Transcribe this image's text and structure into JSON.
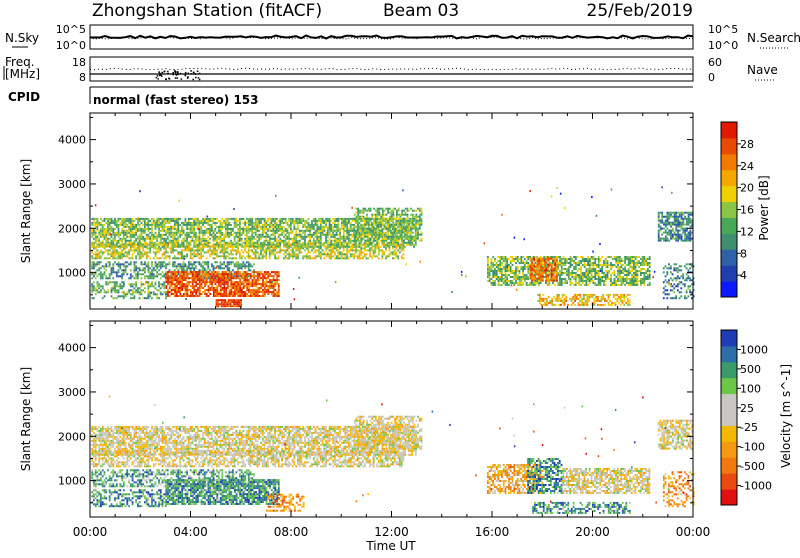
{
  "header": {
    "station": "Zhongshan Station (fitACF)",
    "beam": "Beam 03",
    "date": "25/Feb/2019"
  },
  "noise_panel": {
    "left_label": "N.Sky",
    "right_label": "N.Search",
    "left_ticks": [
      "10^5",
      "10^0"
    ],
    "right_ticks": [
      "10^5",
      "10^0"
    ]
  },
  "freq_panel": {
    "left_label_line1": "Freq.",
    "left_label_line2": "[MHz]",
    "right_label": "Nave",
    "left_ticks": [
      "18",
      "8"
    ],
    "right_ticks": [
      "60",
      "0"
    ]
  },
  "cpid": {
    "label": "CPID",
    "text": "normal (fast stereo) 153"
  },
  "x_axis": {
    "title": "Time UT",
    "range_hours": [
      0,
      24
    ],
    "ticks": [
      {
        "hour": 0,
        "label": "00:00"
      },
      {
        "hour": 4,
        "label": "04:00"
      },
      {
        "hour": 8,
        "label": "08:00"
      },
      {
        "hour": 12,
        "label": "12:00"
      },
      {
        "hour": 16,
        "label": "16:00"
      },
      {
        "hour": 20,
        "label": "20:00"
      },
      {
        "hour": 24,
        "label": "00:00"
      }
    ]
  },
  "chart_data": [
    {
      "type": "heatmap",
      "quantity": "power",
      "ylabel": "Slant Range [km]",
      "ylim": [
        180,
        4600
      ],
      "xlim": [
        0,
        24
      ],
      "yticks": [
        1000,
        2000,
        3000,
        4000
      ],
      "colorbar": {
        "label": "Power [dB]",
        "ticks": [
          "4",
          "8",
          "12",
          "16",
          "20",
          "24",
          "28"
        ],
        "colors": [
          "#0a1aff",
          "#1f3fb0",
          "#2e62a8",
          "#3d8f6e",
          "#49a856",
          "#8cc443",
          "#f0d000",
          "#f5a800",
          "#f27a00",
          "#e84a00",
          "#e01a00"
        ]
      },
      "regions": [
        {
          "t0": 0.05,
          "t1": 13.0,
          "r0": 1560,
          "r1": 2200,
          "level": 0.45,
          "density": 0.75
        },
        {
          "t0": 0.05,
          "t1": 12.5,
          "r0": 1300,
          "r1": 1650,
          "level": 0.55,
          "density": 0.6
        },
        {
          "t0": 0.05,
          "t1": 6.5,
          "r0": 850,
          "r1": 1250,
          "level": 0.35,
          "density": 0.55
        },
        {
          "t0": 3.0,
          "t1": 7.5,
          "r0": 450,
          "r1": 1000,
          "level": 0.85,
          "density": 0.8
        },
        {
          "t0": 0.05,
          "t1": 3.0,
          "r0": 400,
          "r1": 800,
          "level": 0.4,
          "density": 0.45
        },
        {
          "t0": 5.0,
          "t1": 6.0,
          "r0": 220,
          "r1": 380,
          "level": 0.9,
          "density": 0.9
        },
        {
          "t0": 10.5,
          "t1": 13.2,
          "r0": 1700,
          "r1": 2450,
          "level": 0.45,
          "density": 0.6
        },
        {
          "t0": 15.8,
          "t1": 22.3,
          "r0": 700,
          "r1": 1350,
          "level": 0.45,
          "density": 0.7
        },
        {
          "t0": 17.5,
          "t1": 18.6,
          "r0": 800,
          "r1": 1300,
          "level": 0.8,
          "density": 0.7
        },
        {
          "t0": 17.8,
          "t1": 21.5,
          "r0": 250,
          "r1": 500,
          "level": 0.65,
          "density": 0.55
        },
        {
          "t0": 22.6,
          "t1": 24.0,
          "r0": 1700,
          "r1": 2350,
          "level": 0.3,
          "density": 0.7
        },
        {
          "t0": 22.8,
          "t1": 24.0,
          "r0": 400,
          "r1": 1200,
          "level": 0.3,
          "density": 0.35
        }
      ]
    },
    {
      "type": "heatmap",
      "quantity": "velocity",
      "ylabel": "Slant Range [km]",
      "ylim": [
        180,
        4600
      ],
      "xlim": [
        0,
        24
      ],
      "yticks": [
        1000,
        2000,
        3000,
        4000
      ],
      "colorbar": {
        "label": "Velocity [m s^-1]",
        "ticks": [
          "1000",
          "500",
          "100",
          "25",
          "-25",
          "-100",
          "-500",
          "-1000"
        ],
        "colors": [
          "#1e3cb4",
          "#2d6ea8",
          "#3a9a6a",
          "#6cc648",
          "#c8c8c0",
          "#c8c8c0",
          "#f5b800",
          "#f59a10",
          "#f07a10",
          "#ea4a10",
          "#e01010"
        ]
      },
      "regions": [
        {
          "t0": 0.05,
          "t1": 13.0,
          "r0": 1560,
          "r1": 2200,
          "level": 0.5,
          "density": 0.75
        },
        {
          "t0": 0.05,
          "t1": 12.5,
          "r0": 1300,
          "r1": 1650,
          "level": 0.5,
          "density": 0.6
        },
        {
          "t0": 0.05,
          "t1": 6.5,
          "r0": 850,
          "r1": 1250,
          "level": 0.75,
          "density": 0.55
        },
        {
          "t0": 3.0,
          "t1": 7.5,
          "r0": 450,
          "r1": 1000,
          "level": 0.78,
          "density": 0.8
        },
        {
          "t0": 0.05,
          "t1": 3.0,
          "r0": 400,
          "r1": 800,
          "level": 0.8,
          "density": 0.45
        },
        {
          "t0": 7.0,
          "t1": 8.5,
          "r0": 300,
          "r1": 700,
          "level": 0.3,
          "density": 0.5
        },
        {
          "t0": 10.5,
          "t1": 13.2,
          "r0": 1700,
          "r1": 2450,
          "level": 0.5,
          "density": 0.6
        },
        {
          "t0": 15.8,
          "t1": 18.0,
          "r0": 700,
          "r1": 1350,
          "level": 0.35,
          "density": 0.65
        },
        {
          "t0": 17.4,
          "t1": 18.8,
          "r0": 700,
          "r1": 1500,
          "level": 0.8,
          "density": 0.6
        },
        {
          "t0": 18.8,
          "t1": 22.3,
          "r0": 700,
          "r1": 1250,
          "level": 0.5,
          "density": 0.7
        },
        {
          "t0": 17.6,
          "t1": 21.5,
          "r0": 250,
          "r1": 520,
          "level": 0.78,
          "density": 0.55
        },
        {
          "t0": 22.6,
          "t1": 24.0,
          "r0": 1700,
          "r1": 2350,
          "level": 0.5,
          "density": 0.7
        },
        {
          "t0": 22.8,
          "t1": 24.0,
          "r0": 400,
          "r1": 1200,
          "level": 0.3,
          "density": 0.35
        }
      ]
    }
  ]
}
